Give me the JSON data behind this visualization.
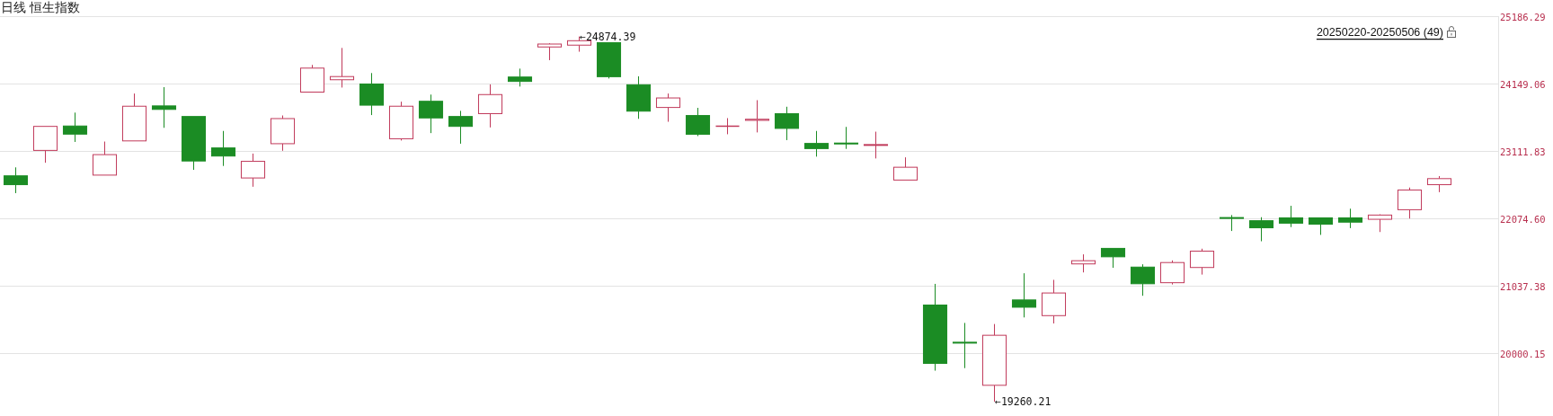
{
  "chart_data": {
    "type": "candlestick",
    "title": "日线 恒生指数",
    "categories": [
      null,
      null,
      null,
      null,
      null,
      null,
      null,
      null,
      null,
      null,
      null,
      null,
      null,
      null,
      null,
      null,
      null,
      null,
      null,
      null,
      null,
      null,
      null,
      null,
      null,
      null,
      null,
      null,
      null,
      null,
      null,
      null,
      null,
      null,
      null,
      null,
      null,
      null,
      null,
      null,
      null,
      null,
      null,
      null,
      null,
      null,
      null,
      null,
      null
    ],
    "ohlc": [
      [
        22732,
        22862,
        22466,
        22596
      ],
      [
        23123,
        23492,
        22933,
        23492
      ],
      [
        23498,
        23704,
        23253,
        23373
      ],
      [
        22743,
        23259,
        22743,
        23058
      ],
      [
        23269,
        23997,
        23269,
        23802
      ],
      [
        23807,
        24095,
        23470,
        23753
      ],
      [
        23644,
        23644,
        22824,
        22960
      ],
      [
        23161,
        23422,
        22884,
        23036
      ],
      [
        22699,
        23074,
        22564,
        22955
      ],
      [
        23226,
        23660,
        23117,
        23612
      ],
      [
        24019,
        24437,
        24019,
        24388
      ],
      [
        24209,
        24698,
        24089,
        24258
      ],
      [
        24144,
        24312,
        23666,
        23818
      ],
      [
        23302,
        23872,
        23275,
        23802
      ],
      [
        23878,
        23981,
        23389,
        23622
      ],
      [
        23644,
        23731,
        23226,
        23492
      ],
      [
        23688,
        24138,
        23476,
        23981
      ],
      [
        24251,
        24380,
        24104,
        24183
      ],
      [
        24713,
        24769,
        24510,
        24758
      ],
      [
        24741,
        24874.39,
        24640,
        24809
      ],
      [
        24780,
        24780,
        24228,
        24256
      ],
      [
        24132,
        24262,
        23608,
        23726
      ],
      [
        23783,
        23997,
        23563,
        23929
      ],
      [
        23659,
        23777,
        23343,
        23371
      ],
      [
        23495,
        23619,
        23371,
        23495
      ],
      [
        23585,
        23895,
        23399,
        23602
      ],
      [
        23687,
        23794,
        23281,
        23461
      ],
      [
        23230,
        23422,
        23027,
        23151
      ],
      [
        23236,
        23484,
        23146,
        23225
      ],
      [
        23202,
        23411,
        22999,
        23213
      ],
      [
        22667,
        23016,
        22667,
        22864
      ],
      [
        20746,
        21071,
        19737,
        19849
      ],
      [
        20174,
        20471,
        19776,
        20163
      ],
      [
        19512,
        20454,
        19260.21,
        20281
      ],
      [
        20824,
        21234,
        20555,
        20712
      ],
      [
        20583,
        21133,
        20463,
        20931
      ],
      [
        21378,
        21525,
        21247,
        21427
      ],
      [
        21617,
        21617,
        21318,
        21487
      ],
      [
        21329,
        21372,
        20888,
        21073
      ],
      [
        21089,
        21432,
        21062,
        21399
      ],
      [
        21323,
        21612,
        21214,
        21574
      ],
      [
        22091,
        22129,
        21884,
        22080
      ],
      [
        22042,
        22096,
        21726,
        21933
      ],
      [
        22086,
        22271,
        21944,
        22004
      ],
      [
        22086,
        22086,
        21824,
        21988
      ],
      [
        22086,
        22227,
        21928,
        22020
      ],
      [
        22064,
        22140,
        21868,
        22129
      ],
      [
        22211,
        22552,
        22075,
        22514
      ],
      [
        22596,
        22728,
        22481,
        22689
      ]
    ],
    "colors": [
      "#1b8c24",
      "#c0395a",
      "#1b8c24",
      "#c0395a",
      "#c0395a",
      "#1b8c24",
      "#1b8c24",
      "#1b8c24",
      "#c0395a",
      "#c0395a",
      "#c0395a",
      "#c0395a",
      "#1b8c24",
      "#c0395a",
      "#1b8c24",
      "#1b8c24",
      "#c0395a",
      "#1b8c24",
      "#c0395a",
      "#c0395a",
      "#1b8c24",
      "#1b8c24",
      "#c0395a",
      "#1b8c24",
      "#c0395a",
      "#c0395a",
      "#1b8c24",
      "#1b8c24",
      "#1b8c24",
      "#c0395a",
      "#c0395a",
      "#1b8c24",
      "#1b8c24",
      "#c0395a",
      "#1b8c24",
      "#c0395a",
      "#c0395a",
      "#1b8c24",
      "#1b8c24",
      "#c0395a",
      "#c0395a",
      "#1b8c24",
      "#1b8c24",
      "#1b8c24",
      "#1b8c24",
      "#1b8c24",
      "#c0395a",
      "#c0395a",
      "#c0395a"
    ],
    "ylim": [
      19040,
      25186.29
    ],
    "yticks": [
      20000.15,
      21037.38,
      {
        "value": 22074.6,
        "label": "22074.60"
      },
      23111.83,
      24149.06,
      25186.29
    ],
    "grid": "y",
    "annotations": [
      "←24874.39",
      "←19260.21",
      "20250220-20250506 (49)"
    ]
  }
}
